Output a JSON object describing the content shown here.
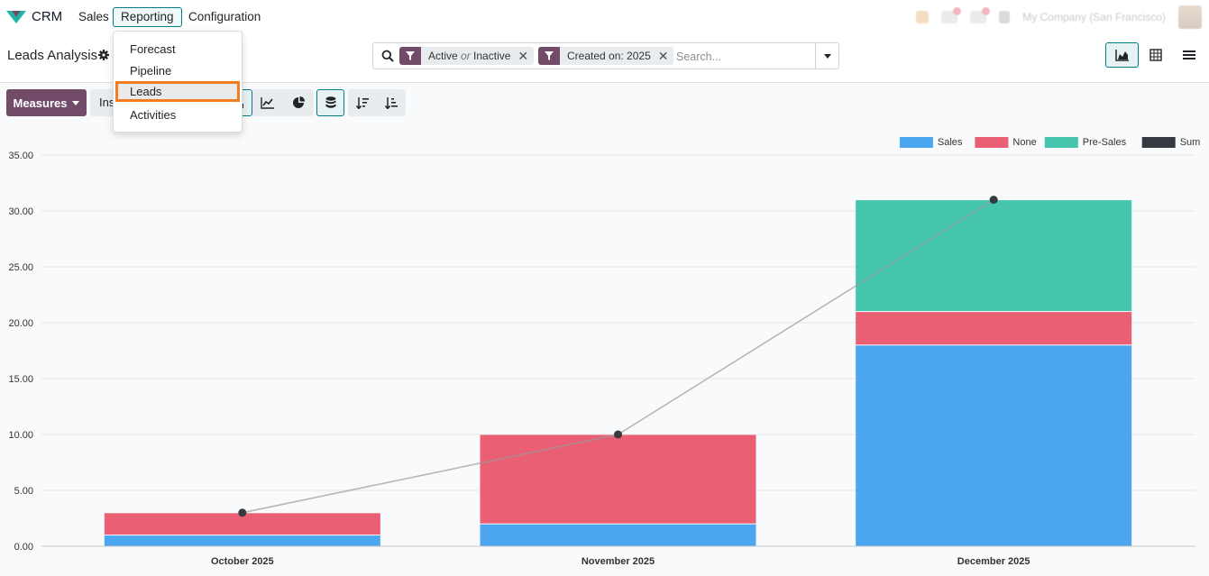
{
  "app": {
    "name": "CRM",
    "nav": {
      "sales": "Sales",
      "reporting": "Reporting",
      "configuration": "Configuration"
    },
    "company": "My Company (San Francisco)"
  },
  "reporting_menu": {
    "items": [
      "Forecast",
      "Pipeline",
      "Leads",
      "Activities"
    ],
    "highlighted": "Leads"
  },
  "page": {
    "title": "Leads Analysis"
  },
  "search": {
    "facets": [
      {
        "parts": [
          "Active",
          "or",
          "Inactive"
        ]
      },
      {
        "label": "Created on: 2025"
      }
    ],
    "placeholder": "Search..."
  },
  "toolbar": {
    "measures_label": "Measures",
    "insert_label": "Insert in Spreadsheet"
  },
  "colors": {
    "accent": "#714b67",
    "teal": "#017e84",
    "highlight": "#f47c20"
  },
  "chart_data": {
    "type": "bar",
    "stacked": true,
    "categories": [
      "October 2025",
      "November 2025",
      "December 2025"
    ],
    "series": [
      {
        "name": "Sales",
        "color": "#4da6f0",
        "values": [
          1,
          2,
          18
        ]
      },
      {
        "name": "None",
        "color": "#ea5f74",
        "values": [
          2,
          8,
          3
        ]
      },
      {
        "name": "Pre-Sales",
        "color": "#45c5ad",
        "values": [
          0,
          0,
          10
        ]
      }
    ],
    "line_series": {
      "name": "Sum",
      "color": "#343a40",
      "values": [
        3,
        10,
        31
      ]
    },
    "ylim": [
      0,
      35
    ],
    "yticks": [
      "0.00",
      "5.00",
      "10.00",
      "15.00",
      "20.00",
      "25.00",
      "30.00",
      "35.00"
    ],
    "legend": "top-right",
    "grid": true
  }
}
